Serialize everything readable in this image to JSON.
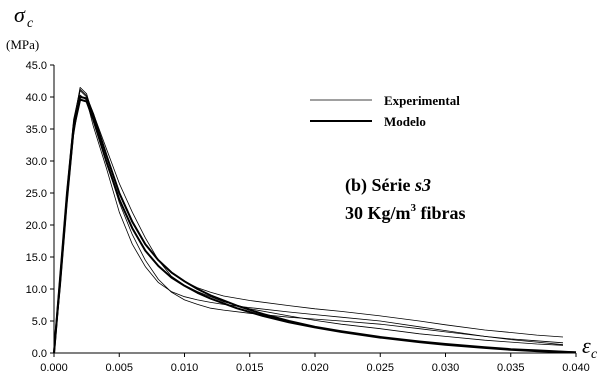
{
  "chart_data": {
    "type": "line",
    "ylabel_symbol": "σ",
    "ylabel_subscript": "c",
    "ylabel_unit": "(MPa)",
    "xlabel_symbol": "ε",
    "xlabel_subscript": "c",
    "xlim": [
      0,
      0.04
    ],
    "ylim": [
      0,
      45
    ],
    "x_ticks": [
      "0.000",
      "0.005",
      "0.010",
      "0.015",
      "0.020",
      "0.025",
      "0.030",
      "0.035",
      "0.040"
    ],
    "y_ticks": [
      "0.0",
      "5.0",
      "10.0",
      "15.0",
      "20.0",
      "25.0",
      "30.0",
      "35.0",
      "40.0",
      "45.0"
    ],
    "grid": false,
    "legend_position": "top-right",
    "annotation": {
      "line1_prefix": "(b) Série ",
      "line1_italic": "s3",
      "line2_a": "30 Kg/m",
      "line2_sup": "3",
      "line2_b": " fibras"
    },
    "series": [
      {
        "name": "Experimental",
        "style": "thin",
        "curves": [
          {
            "x": [
              0,
              0.0005,
              0.001,
              0.0015,
              0.002,
              0.0025,
              0.003,
              0.004,
              0.005,
              0.006,
              0.007,
              0.008,
              0.009,
              0.01,
              0.011,
              0.012,
              0.013,
              0.015,
              0.018,
              0.02,
              0.022,
              0.025,
              0.028,
              0.03,
              0.033,
              0.035,
              0.037,
              0.039
            ],
            "y": [
              0,
              12,
              25,
              36,
              41.5,
              40.5,
              37,
              31,
              25,
              20.5,
              17,
              14.5,
              12.5,
              11.2,
              10.2,
              9.5,
              8.9,
              8.2,
              7.4,
              6.9,
              6.5,
              5.8,
              5.0,
              4.4,
              3.6,
              3.2,
              2.8,
              2.5
            ]
          },
          {
            "x": [
              0,
              0.0005,
              0.001,
              0.0015,
              0.002,
              0.0025,
              0.003,
              0.004,
              0.005,
              0.006,
              0.007,
              0.008,
              0.009,
              0.01,
              0.011,
              0.012,
              0.013,
              0.015,
              0.018,
              0.02,
              0.022,
              0.025,
              0.028,
              0.03,
              0.033,
              0.035,
              0.037,
              0.039
            ],
            "y": [
              0,
              11,
              24,
              35,
              41,
              40,
              36.5,
              30,
              23.5,
              18.5,
              14.5,
              11.5,
              9.5,
              8.3,
              7.6,
              7.0,
              6.7,
              6.2,
              5.6,
              5.3,
              5.0,
              4.5,
              3.8,
              3.3,
              2.6,
              2.2,
              1.9,
              1.6
            ]
          },
          {
            "x": [
              0,
              0.0005,
              0.001,
              0.0015,
              0.002,
              0.0025,
              0.003,
              0.004,
              0.005,
              0.006,
              0.007,
              0.008,
              0.009,
              0.01,
              0.011,
              0.012,
              0.013,
              0.015,
              0.018,
              0.02,
              0.022,
              0.025,
              0.028,
              0.03,
              0.033,
              0.035,
              0.037,
              0.039
            ],
            "y": [
              0,
              10.5,
              23,
              34,
              40.3,
              39.5,
              35.5,
              29,
              22,
              17,
              13.5,
              11,
              9.6,
              8.8,
              8.3,
              7.9,
              7.6,
              7.1,
              6.4,
              6.0,
              5.6,
              5.0,
              4.1,
              3.5,
              2.6,
              2.1,
              1.7,
              1.3
            ]
          },
          {
            "x": [
              0,
              0.0005,
              0.001,
              0.0015,
              0.002,
              0.0025,
              0.003,
              0.004,
              0.005,
              0.006,
              0.007,
              0.008,
              0.009,
              0.01,
              0.011,
              0.012,
              0.013,
              0.015,
              0.018,
              0.02,
              0.022,
              0.025,
              0.028,
              0.03,
              0.033,
              0.035,
              0.037,
              0.039
            ],
            "y": [
              0,
              12,
              25.5,
              36.5,
              41.2,
              40.2,
              37.5,
              32,
              26.5,
              22,
              18,
              14.5,
              12,
              10.6,
              9.6,
              8.8,
              8.0,
              6.9,
              5.8,
              5.1,
              4.5,
              3.8,
              3.0,
              2.6,
              2.0,
              1.7,
              1.4,
              1.2
            ]
          }
        ]
      },
      {
        "name": "Modelo",
        "style": "thick",
        "curves": [
          {
            "x": [
              0,
              0.0005,
              0.001,
              0.0015,
              0.002,
              0.0025,
              0.003,
              0.004,
              0.005,
              0.006,
              0.007,
              0.008,
              0.009,
              0.01,
              0.011,
              0.012,
              0.014,
              0.016,
              0.018,
              0.02,
              0.022,
              0.025,
              0.028,
              0.03,
              0.033,
              0.035,
              0.037,
              0.04
            ],
            "y": [
              0,
              12,
              24.5,
              35,
              39.6,
              39.3,
              36.5,
              30,
              24,
              19.5,
              16,
              13.6,
              11.8,
              10.5,
              9.4,
              8.5,
              7.0,
              5.8,
              4.8,
              4.0,
              3.3,
              2.4,
              1.7,
              1.3,
              0.8,
              0.5,
              0.3,
              0.1
            ]
          },
          {
            "x": [
              0,
              0.0005,
              0.001,
              0.0015,
              0.002,
              0.0025,
              0.003,
              0.004,
              0.005,
              0.006,
              0.007,
              0.008,
              0.009,
              0.01,
              0.011,
              0.012,
              0.014,
              0.016,
              0.018,
              0.02,
              0.022,
              0.025,
              0.028,
              0.03,
              0.033,
              0.035,
              0.037,
              0.04
            ],
            "y": [
              0,
              12.5,
              25,
              35.5,
              40,
              39.8,
              37.3,
              31,
              25,
              20.5,
              17,
              14.5,
              12.6,
              11.2,
              10.0,
              9.0,
              7.4,
              6.1,
              5.0,
              4.1,
              3.4,
              2.5,
              1.8,
              1.4,
              0.9,
              0.6,
              0.4,
              0.1
            ]
          }
        ]
      }
    ]
  }
}
